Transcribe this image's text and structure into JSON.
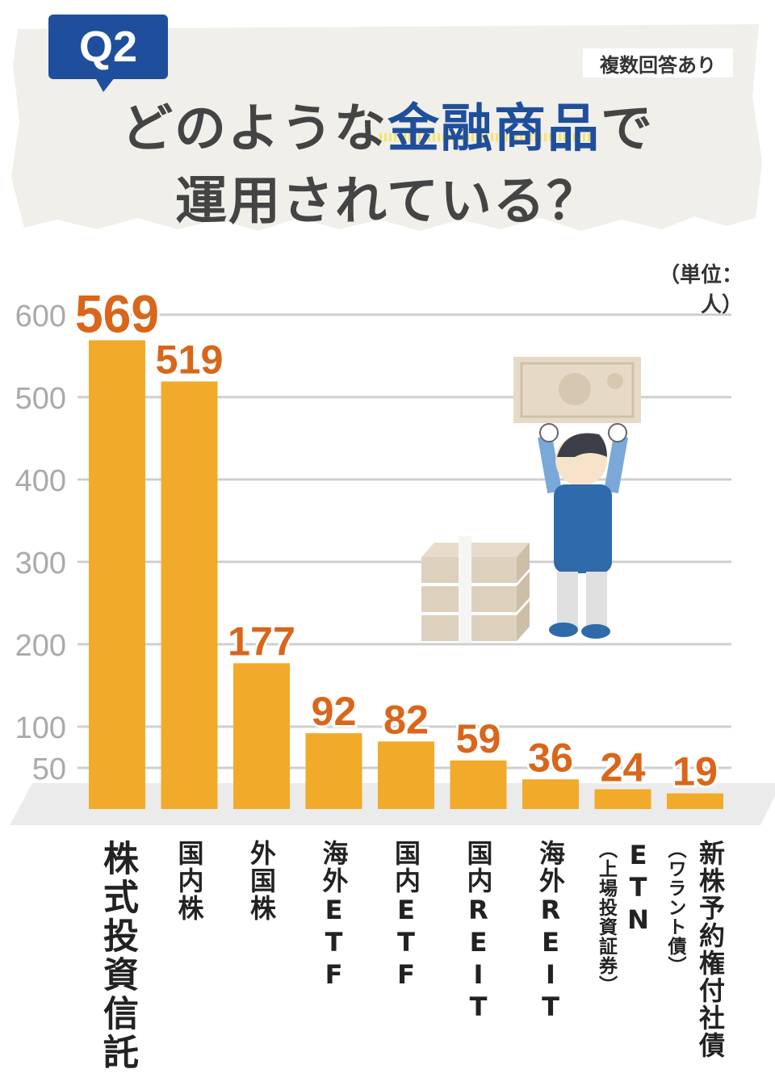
{
  "header": {
    "badge": "Q2",
    "note": "複数回答あり",
    "title_line1_pre": "どのような",
    "title_line1_highlight": "金融商品",
    "title_line1_post": "で",
    "title_line2": "運用されている？"
  },
  "unit_label": "（単位：人）",
  "colors": {
    "bar": "#f2aa2b",
    "value_label": "#d9661a",
    "axis_label": "#aaaaaa",
    "accent": "#1f4f9c"
  },
  "chart_data": {
    "type": "bar",
    "title": "どのような金融商品で運用されている？",
    "unit": "（単位：人）",
    "yticks": [
      "600",
      "500",
      "400",
      "300",
      "200",
      "100",
      "50"
    ],
    "ylim": [
      0,
      600
    ],
    "categories": [
      "株式投資信託",
      "国内株",
      "外国株",
      "海外ETF",
      "国内ETF",
      "国内REIT",
      "海外REIT",
      "ETN",
      "新株予約権付社債"
    ],
    "category_notes": [
      "",
      "",
      "",
      "",
      "",
      "",
      "",
      "（上場投資証券）",
      "（ワラント債）"
    ],
    "values": [
      569,
      519,
      177,
      92,
      82,
      59,
      36,
      24,
      19
    ],
    "value_labels": [
      "569",
      "519",
      "177",
      "92",
      "82",
      "59",
      "36",
      "24",
      "19"
    ]
  }
}
